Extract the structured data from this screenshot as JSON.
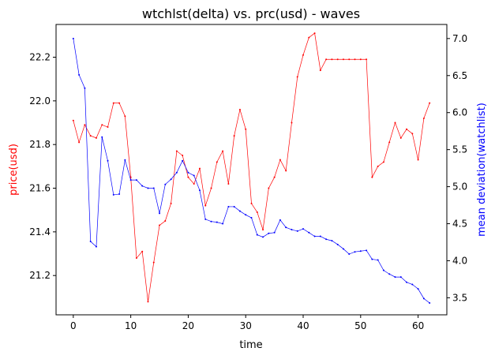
{
  "chart_data": {
    "type": "line",
    "title": "wtchlst(delta) vs. prc(usd) - waves",
    "xlabel": "time",
    "ylabel_left": "price(usd)",
    "ylabel_right": "mean deviation(watchlist)",
    "xlim": [
      -3,
      65
    ],
    "ylim_left": [
      21.02,
      22.35
    ],
    "ylim_right": [
      3.27,
      7.19
    ],
    "x_ticks": [
      0,
      10,
      20,
      30,
      40,
      50,
      60
    ],
    "y_left_ticks": [
      21.2,
      21.4,
      21.6,
      21.8,
      22.0,
      22.2
    ],
    "y_right_ticks": [
      3.5,
      4.0,
      4.5,
      5.0,
      5.5,
      6.0,
      6.5,
      7.0
    ],
    "grid": false,
    "colors": {
      "price": "#ff0000",
      "watchlist": "#0000ff",
      "axis": "#000000"
    },
    "series": [
      {
        "axis": "left",
        "color": "#ff0000",
        "x": [
          0,
          1,
          2,
          3,
          4,
          5,
          6,
          7,
          8,
          9,
          10,
          11,
          12,
          13,
          14,
          15,
          16,
          17,
          18,
          19,
          20,
          21,
          22,
          23,
          24,
          25,
          26,
          27,
          28,
          29,
          30,
          31,
          32,
          33,
          34,
          35,
          36,
          37,
          38,
          39,
          40,
          41,
          42,
          43,
          44,
          45,
          46,
          47,
          48,
          49,
          50,
          51,
          52,
          53,
          54,
          55,
          56,
          57,
          58,
          59,
          60,
          61,
          62
        ],
        "values": [
          21.91,
          21.81,
          21.89,
          21.84,
          21.83,
          21.89,
          21.88,
          21.99,
          21.99,
          21.93,
          21.65,
          21.28,
          21.31,
          21.08,
          21.26,
          21.43,
          21.45,
          21.53,
          21.77,
          21.75,
          21.65,
          21.62,
          21.69,
          21.52,
          21.6,
          21.72,
          21.77,
          21.62,
          21.84,
          21.96,
          21.87,
          21.53,
          21.49,
          21.41,
          21.6,
          21.65,
          21.73,
          21.68,
          21.9,
          22.11,
          22.21,
          22.29,
          22.31,
          22.14,
          22.19,
          22.19,
          22.19,
          22.19,
          22.19,
          22.19,
          22.19,
          22.19,
          21.65,
          21.7,
          21.72,
          21.81,
          21.9,
          21.83,
          21.87,
          21.85,
          21.73,
          21.92,
          21.99
        ]
      },
      {
        "axis": "right",
        "color": "#0000ff",
        "x": [
          0,
          1,
          2,
          3,
          4,
          5,
          6,
          7,
          8,
          9,
          10,
          11,
          12,
          13,
          14,
          15,
          16,
          17,
          18,
          19,
          20,
          21,
          22,
          23,
          24,
          25,
          26,
          27,
          28,
          29,
          30,
          31,
          32,
          33,
          34,
          35,
          36,
          37,
          38,
          39,
          40,
          41,
          42,
          43,
          44,
          45,
          46,
          47,
          48,
          49,
          50,
          51,
          52,
          53,
          54,
          55,
          56,
          57,
          58,
          59,
          60,
          61,
          62
        ],
        "values": [
          7.0,
          6.51,
          6.33,
          4.26,
          4.19,
          5.67,
          5.35,
          4.89,
          4.9,
          5.36,
          5.09,
          5.09,
          5.01,
          4.98,
          4.98,
          4.64,
          5.03,
          5.1,
          5.19,
          5.35,
          5.19,
          5.15,
          4.95,
          4.56,
          4.53,
          4.52,
          4.5,
          4.73,
          4.73,
          4.67,
          4.62,
          4.58,
          4.35,
          4.32,
          4.37,
          4.38,
          4.55,
          4.45,
          4.42,
          4.4,
          4.43,
          4.38,
          4.33,
          4.33,
          4.29,
          4.27,
          4.22,
          4.16,
          4.09,
          4.12,
          4.13,
          4.14,
          4.02,
          4.01,
          3.87,
          3.82,
          3.78,
          3.78,
          3.71,
          3.68,
          3.62,
          3.49,
          3.43
        ]
      }
    ]
  }
}
